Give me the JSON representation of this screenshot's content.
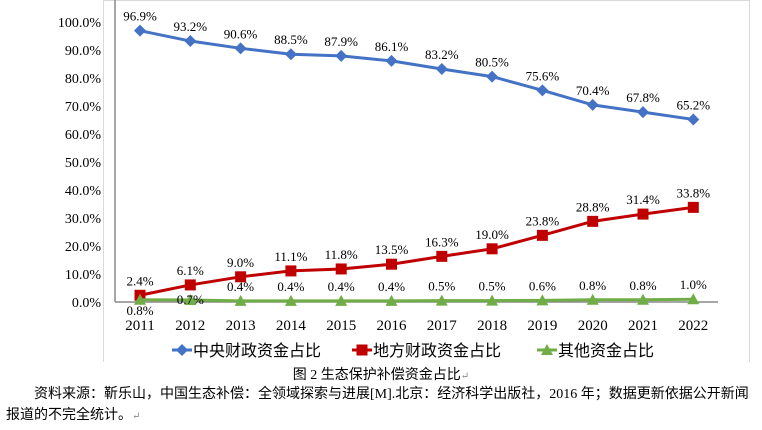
{
  "chart_data": {
    "type": "line",
    "title": "",
    "xlabel": "",
    "ylabel": "",
    "x": [
      "2011",
      "2012",
      "2013",
      "2014",
      "2015",
      "2016",
      "2017",
      "2018",
      "2019",
      "2020",
      "2021",
      "2022"
    ],
    "ylim": [
      0,
      100
    ],
    "yticks": [
      "0.0%",
      "10.0%",
      "20.0%",
      "30.0%",
      "40.0%",
      "50.0%",
      "60.0%",
      "70.0%",
      "80.0%",
      "90.0%",
      "100.0%"
    ],
    "legend_position": "bottom",
    "series": [
      {
        "name": "中央财政资金占比",
        "color": "#4472C4",
        "marker": "diamond",
        "values": [
          96.9,
          93.2,
          90.6,
          88.5,
          87.9,
          86.1,
          83.2,
          80.5,
          75.6,
          70.4,
          67.8,
          65.2
        ]
      },
      {
        "name": "地方财政资金占比",
        "color": "#C00000",
        "marker": "square",
        "values": [
          2.4,
          6.1,
          9.0,
          11.1,
          11.8,
          13.5,
          16.3,
          19.0,
          23.8,
          28.8,
          31.4,
          33.8
        ]
      },
      {
        "name": "其他资金占比",
        "color": "#70AD47",
        "marker": "triangle",
        "values": [
          0.8,
          0.7,
          0.4,
          0.4,
          0.4,
          0.4,
          0.5,
          0.5,
          0.6,
          0.8,
          0.8,
          1.0
        ]
      }
    ]
  },
  "caption": "图 2  生态保护补偿资金占比",
  "source": "资料来源：靳乐山，中国生态补偿：全领域探索与进展[M].北京：经济科学出版社，2016 年；数据更新依据公开新闻报道的不完全统计。"
}
